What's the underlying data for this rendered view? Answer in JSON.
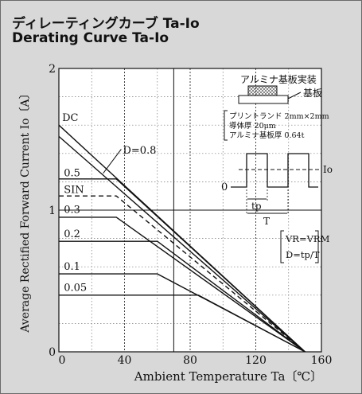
{
  "header": {
    "title_jp": "ディレーティングカーブ Ta-Io",
    "title_en": "Derating Curve Ta-Io"
  },
  "chart_data": {
    "type": "line",
    "xlabel": "Ambient Temperature  Ta〔℃〕",
    "ylabel": "Average Rectified Forward Current  Io〔A〕",
    "xlim": [
      0,
      160
    ],
    "ylim": [
      0,
      2
    ],
    "x_ticks": [
      0,
      40,
      80,
      120,
      160
    ],
    "x_tick_labels": [
      "0",
      "40",
      "80",
      "120",
      "160"
    ],
    "y_ticks": [
      0,
      1,
      2
    ],
    "y_tick_labels": [
      "0",
      "1",
      "2"
    ],
    "grid": true,
    "series": [
      {
        "name": "DC",
        "points": [
          [
            0,
            1.6
          ],
          [
            150,
            0
          ]
        ],
        "dash": false
      },
      {
        "name": "D=0.8",
        "points": [
          [
            0,
            1.52
          ],
          [
            150,
            0
          ]
        ],
        "dash": false
      },
      {
        "name": "0.5",
        "points": [
          [
            0,
            1.22
          ],
          [
            35,
            1.22
          ],
          [
            150,
            0
          ]
        ],
        "dash": false
      },
      {
        "name": "SIN",
        "points": [
          [
            0,
            1.1
          ],
          [
            35,
            1.1
          ],
          [
            150,
            0
          ]
        ],
        "dash": true
      },
      {
        "name": "0.3",
        "points": [
          [
            0,
            0.95
          ],
          [
            35,
            0.95
          ],
          [
            150,
            0
          ]
        ],
        "dash": false
      },
      {
        "name": "0.2",
        "points": [
          [
            0,
            0.78
          ],
          [
            60,
            0.78
          ],
          [
            150,
            0
          ]
        ],
        "dash": false
      },
      {
        "name": "0.1",
        "points": [
          [
            0,
            0.55
          ],
          [
            60,
            0.55
          ],
          [
            150,
            0
          ]
        ],
        "dash": false
      },
      {
        "name": "0.05",
        "points": [
          [
            0,
            0.4
          ],
          [
            85,
            0.4
          ],
          [
            150,
            0
          ]
        ],
        "dash": false
      }
    ],
    "reference_lines": [
      {
        "axis": "x",
        "value": 70
      },
      {
        "axis": "y",
        "value": 1
      }
    ]
  },
  "annotations": {
    "substrate_title": "アルミナ基板実装",
    "substrate_label": "基板",
    "substrate_specs": [
      "プリントランド 2mm×2mm",
      "導体厚 20μm",
      "アルミナ基板厚 0.64t"
    ],
    "waveform_zero": "0",
    "waveform_io": "Io",
    "waveform_tp": "tp",
    "waveform_T": "T",
    "conditions": [
      "VR=VRM",
      "D=tp/T"
    ]
  }
}
